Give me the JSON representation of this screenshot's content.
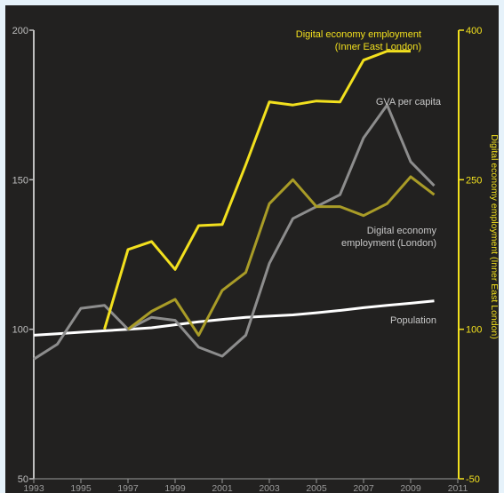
{
  "chart_data": {
    "type": "line",
    "title": "",
    "x": [
      1993,
      1994,
      1995,
      1996,
      1997,
      1998,
      1999,
      2000,
      2001,
      2002,
      2003,
      2004,
      2005,
      2006,
      2007,
      2008,
      2009,
      2010
    ],
    "x_ticks": [
      "1993",
      "1995",
      "1997",
      "1999",
      "2001",
      "2003",
      "2005",
      "2007",
      "2009",
      "2011"
    ],
    "xlim": [
      1993,
      2011
    ],
    "left_axis": {
      "label": "",
      "ylim": [
        50,
        200
      ],
      "ticks": [
        "50",
        "100",
        "150",
        "200"
      ],
      "color": "#bfbfbf"
    },
    "right_axis": {
      "label": "Digital economy employment (Inner East London)",
      "ylim": [
        -50,
        400
      ],
      "ticks": [
        "-50",
        "100",
        "250",
        "400"
      ],
      "color": "#f2e01e"
    },
    "grid": false,
    "series": [
      {
        "name": "Digital economy employment (Inner East London)",
        "axis": "right",
        "color": "#f2e01e",
        "label_lines": [
          "Digital economy employment",
          "(Inner East London)"
        ],
        "values": [
          null,
          null,
          null,
          100,
          180,
          188,
          160,
          204,
          205,
          265,
          328,
          325,
          329,
          328,
          370,
          379,
          379,
          null
        ]
      },
      {
        "name": "GVA per capita",
        "axis": "left",
        "color": "#8d8d8d",
        "label_lines": [
          "GVA per capita"
        ],
        "values": [
          90,
          95,
          107,
          108,
          100,
          104,
          103,
          94,
          91,
          98,
          122,
          137,
          141,
          145,
          164,
          175,
          156,
          148
        ]
      },
      {
        "name": "Digital economy employment (London)",
        "axis": "left",
        "color": "#a99c27",
        "label_lines": [
          "Digital economy",
          "employment (London)"
        ],
        "values": [
          null,
          null,
          null,
          null,
          100,
          106,
          110,
          98,
          113,
          119,
          142,
          150,
          141,
          141,
          138,
          142,
          151,
          145
        ]
      },
      {
        "name": "Population",
        "axis": "left",
        "color": "#ffffff",
        "label_lines": [
          "Population"
        ],
        "values": [
          98,
          98.5,
          99,
          99.5,
          100,
          100.5,
          101.5,
          102.5,
          103.3,
          104,
          104.4,
          104.8,
          105.5,
          106.3,
          107.2,
          108,
          108.7,
          109.5
        ]
      }
    ]
  }
}
